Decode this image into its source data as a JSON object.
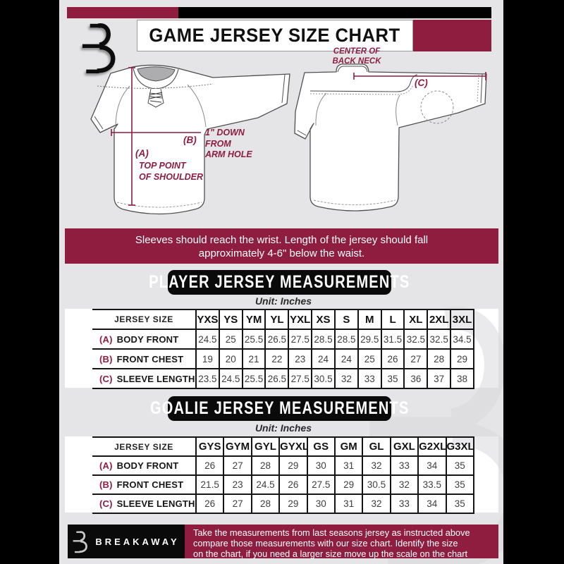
{
  "colors": {
    "maroon": "#8e1d40",
    "background": "#e5e5e7",
    "black": "#000000",
    "table_line": "#141414",
    "white": "#ffffff"
  },
  "header": {
    "title": "GAME JERSEY SIZE CHART",
    "logo": "breakaway-b-logo"
  },
  "diagram": {
    "front": {
      "a_key": "(A)",
      "a_note": [
        "TOP POINT",
        "OF SHOULDER"
      ],
      "b_key": "(B)",
      "b_note": [
        "1\" DOWN",
        "FROM",
        "ARM HOLE"
      ]
    },
    "back": {
      "c_key": "(C)",
      "neck_note": [
        "CENTER OF",
        "BACK NECK"
      ]
    }
  },
  "banner": {
    "lines": [
      "Sleeves should reach the wrist. Length of the jersey should fall",
      "approximately 4-6\" below the waist."
    ]
  },
  "player_section": {
    "title": "PLAYER JERSEY MEASUREMENTS",
    "unit": "Unit: Inches",
    "table": {
      "header": [
        "JERSEY SIZE",
        "YXS",
        "YS",
        "YM",
        "YL",
        "YXL",
        "XS",
        "S",
        "M",
        "L",
        "XL",
        "2XL",
        "3XL"
      ],
      "rows": [
        {
          "key": "(A)",
          "label": "BODY FRONT",
          "values": [
            "24.5",
            "25",
            "25.5",
            "26.5",
            "27.5",
            "28.5",
            "28.5",
            "29.5",
            "31.5",
            "32.5",
            "32.5",
            "34.5"
          ]
        },
        {
          "key": "(B)",
          "label": "FRONT CHEST",
          "values": [
            "19",
            "20",
            "21",
            "22",
            "23",
            "24",
            "24",
            "25",
            "26",
            "27",
            "28",
            "29"
          ]
        },
        {
          "key": "(C)",
          "label": "SLEEVE LENGTH",
          "values": [
            "23.5",
            "24.5",
            "25.5",
            "26.5",
            "27.5",
            "30.5",
            "32",
            "33",
            "35",
            "36",
            "37",
            "38"
          ]
        }
      ]
    }
  },
  "goalie_section": {
    "title": "GOALIE JERSEY MEASUREMENTS",
    "unit": "Unit: Inches",
    "table": {
      "header": [
        "JERSEY SIZE",
        "GYS",
        "GYM",
        "GYL",
        "GYXL",
        "GS",
        "GM",
        "GL",
        "GXL",
        "G2XL",
        "G3XL"
      ],
      "rows": [
        {
          "key": "(A)",
          "label": "BODY FRONT",
          "values": [
            "26",
            "27",
            "28",
            "29",
            "30",
            "31",
            "32",
            "33",
            "34",
            "35"
          ]
        },
        {
          "key": "(B)",
          "label": "FRONT CHEST",
          "values": [
            "21.5",
            "23",
            "24.5",
            "26",
            "27.5",
            "29",
            "30.5",
            "32",
            "33.5",
            "35"
          ]
        },
        {
          "key": "(C)",
          "label": "SLEEVE LENGTH",
          "values": [
            "26",
            "27",
            "28",
            "29",
            "30",
            "31",
            "32",
            "33",
            "34",
            "35"
          ]
        }
      ]
    }
  },
  "footer": {
    "brand": "BREAKAWAY",
    "note_lines": [
      "Take the measurements from last seasons jersey as instructed above",
      "compare those measurements  with our size chart. Identify the size",
      "on the chart, if you need a larger size move up the scale on the chart"
    ]
  }
}
